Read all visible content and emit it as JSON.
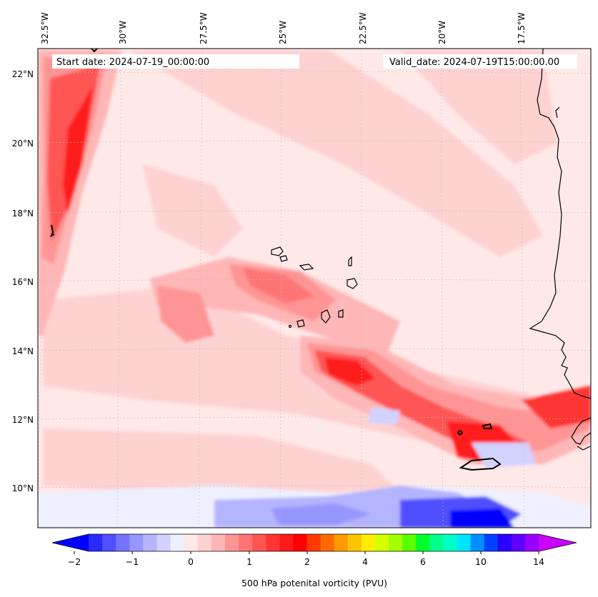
{
  "header": {
    "start_label": "Start date: 2024-07-19_00:00:00",
    "valid_label": "Valid_date: 2024-07-19T15:00:00.00"
  },
  "lon_ticks": [
    "32.5°W",
    "30°W",
    "27.5°W",
    "25°W",
    "22.5°W",
    "20°W",
    "17.5°W"
  ],
  "lat_ticks": [
    "22°N",
    "20°N",
    "18°N",
    "16°N",
    "14°N",
    "12°N",
    "10°N"
  ],
  "colorbar": {
    "label": "500 hPa potenital vorticity (PVU)",
    "tick_labels": [
      "−2",
      "−1",
      "0",
      "1",
      "2",
      "4",
      "6",
      "10",
      "14"
    ],
    "colors": [
      "#0000ff",
      "#2a2aff",
      "#5050ff",
      "#7474ff",
      "#9696ff",
      "#b4b4ff",
      "#d2d2ff",
      "#eef0ff",
      "#ffe8e8",
      "#ffd2d2",
      "#ffb6b6",
      "#ff9494",
      "#ff7474",
      "#ff5454",
      "#ff3434",
      "#ff1a1a",
      "#ff0000",
      "#ff3a00",
      "#ff6a00",
      "#ff9a00",
      "#ffc400",
      "#ffee00",
      "#d4ff00",
      "#a2ff00",
      "#5aff00",
      "#00ff2a",
      "#00ff8c",
      "#00ffc8",
      "#00e4ff",
      "#0090ff",
      "#0040ff",
      "#2a00ff",
      "#6000ff",
      "#9800ff",
      "#cc00ff"
    ]
  },
  "map": {
    "ocean_base": "#ffe8e8",
    "coast_color": "#000000",
    "grid_color": "#bdbdbd"
  }
}
